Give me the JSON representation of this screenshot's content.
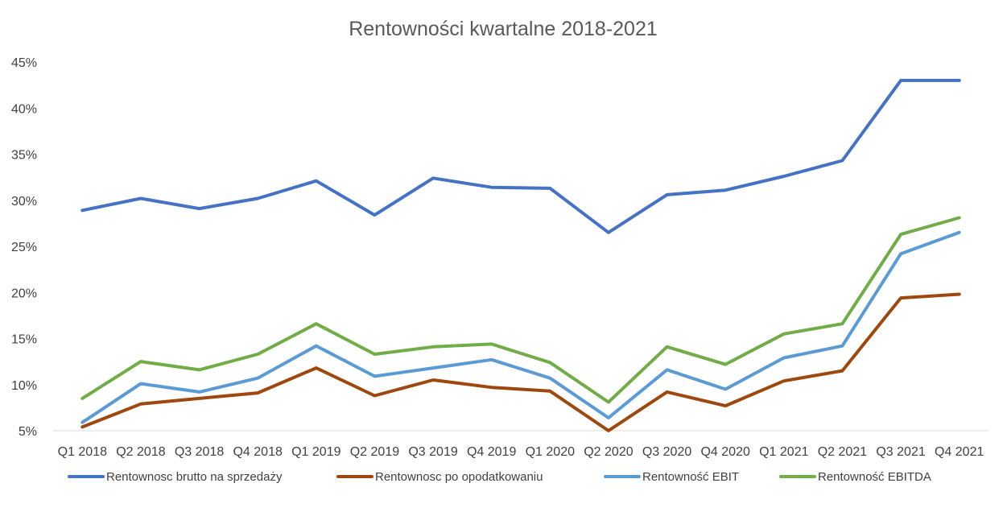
{
  "chart_data": {
    "type": "line",
    "title": "Rentowności kwartalne 2018-2021",
    "xlabel": "",
    "ylabel": "",
    "ylim": [
      5,
      45
    ],
    "y_ticks": [
      "5%",
      "10%",
      "15%",
      "20%",
      "25%",
      "30%",
      "35%",
      "40%",
      "45%"
    ],
    "y_tick_values": [
      5,
      10,
      15,
      20,
      25,
      30,
      35,
      40,
      45
    ],
    "grid": false,
    "legend_position": "bottom",
    "categories": [
      "Q1 2018",
      "Q2 2018",
      "Q3 2018",
      "Q4 2018",
      "Q1 2019",
      "Q2 2019",
      "Q3 2019",
      "Q4 2019",
      "Q1 2020",
      "Q2 2020",
      "Q3 2020",
      "Q4 2020",
      "Q1 2021",
      "Q2 2021",
      "Q3 2021",
      "Q4 2021"
    ],
    "series": [
      {
        "name": "Rentownosc brutto na sprzedaży",
        "color": "#4472C4",
        "values": [
          28.9,
          30.2,
          29.1,
          30.2,
          32.1,
          28.4,
          32.4,
          31.4,
          31.3,
          26.5,
          30.6,
          31.1,
          32.6,
          34.3,
          43.0,
          43.0
        ]
      },
      {
        "name": "Rentownosc po opodatkowaniu",
        "color": "#9E480E",
        "values": [
          5.4,
          7.9,
          8.5,
          9.1,
          11.8,
          8.8,
          10.5,
          9.7,
          9.3,
          5.0,
          9.2,
          7.7,
          10.4,
          11.5,
          19.4,
          19.8
        ]
      },
      {
        "name": "Rentowność EBIT",
        "color": "#5B9BD5",
        "values": [
          5.9,
          10.1,
          9.2,
          10.7,
          14.2,
          10.9,
          11.8,
          12.7,
          10.7,
          6.4,
          11.6,
          9.5,
          12.9,
          14.2,
          24.2,
          26.5
        ]
      },
      {
        "name": "Rentowność EBITDA",
        "color": "#70AD47",
        "values": [
          8.5,
          12.5,
          11.6,
          13.3,
          16.6,
          13.3,
          14.1,
          14.4,
          12.4,
          8.1,
          14.1,
          12.2,
          15.5,
          16.6,
          26.3,
          28.1
        ]
      }
    ]
  }
}
